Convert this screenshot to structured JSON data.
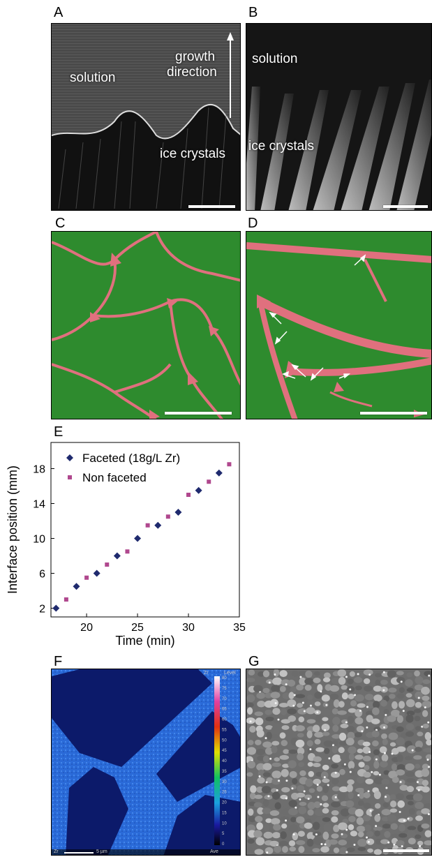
{
  "panels": {
    "A": {
      "label": "A",
      "solution": "solution",
      "growth": "growth",
      "direction": "direction",
      "ice": "ice crystals"
    },
    "B": {
      "label": "B",
      "solution": "solution",
      "ice": "ice crystals"
    },
    "C": {
      "label": "C"
    },
    "D": {
      "label": "D"
    },
    "E": {
      "label": "E"
    },
    "F": {
      "label": "F"
    },
    "G": {
      "label": "G"
    }
  },
  "colors": {
    "ice": "#2e8b2e",
    "phase": "#e0707e",
    "faceted": "#1f2a6e",
    "nonfaceted": "#b0488e",
    "eds_bg": "#0a1a6e",
    "eds_fill": "#2a6ad8"
  },
  "chart_data": {
    "type": "scatter",
    "xlabel": "Time (min)",
    "ylabel": "Interface position (mm)",
    "xlim": [
      16.5,
      35
    ],
    "ylim": [
      1,
      21
    ],
    "xticks": [
      20,
      25,
      30,
      35
    ],
    "yticks": [
      2,
      6,
      10,
      14,
      18
    ],
    "grid": false,
    "legend_position": "top-left",
    "series": [
      {
        "name": "Faceted (18g/L Zr)",
        "marker": "diamond",
        "color": "#1f2a6e",
        "x": [
          17,
          19,
          21,
          23,
          25,
          27,
          29,
          31,
          33
        ],
        "y": [
          2.0,
          4.5,
          6.0,
          8.0,
          10.0,
          11.5,
          13.0,
          15.5,
          17.5
        ]
      },
      {
        "name": "Non faceted",
        "marker": "square",
        "color": "#b0488e",
        "x": [
          18,
          20,
          22,
          24,
          26,
          28,
          30,
          32,
          34
        ],
        "y": [
          3.0,
          5.5,
          7.0,
          8.5,
          11.5,
          12.5,
          15.0,
          16.5,
          18.5
        ]
      }
    ]
  },
  "eds": {
    "element": "Zr",
    "legend_title": "Level",
    "legend_ticks": [
      "80",
      "75",
      "70",
      "65",
      "60",
      "55",
      "50",
      "45",
      "40",
      "35",
      "30",
      "25",
      "20",
      "15",
      "10",
      "5",
      "0"
    ],
    "footer_left": "Zr",
    "scale_text": "5 µm",
    "footer_right": "Ave"
  }
}
